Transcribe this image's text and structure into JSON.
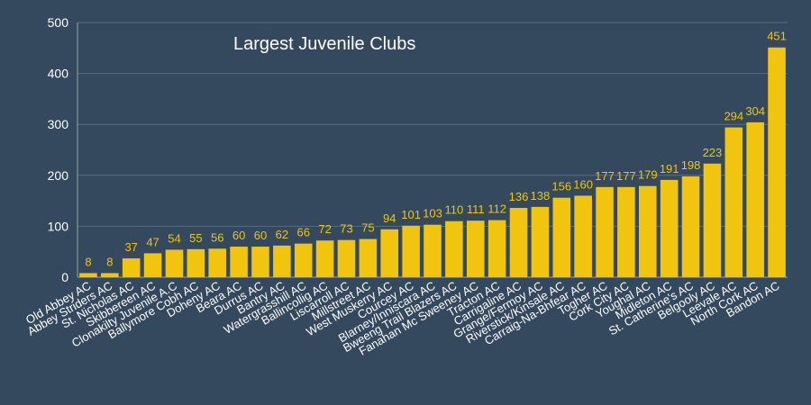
{
  "chart_data": {
    "type": "bar",
    "title": "Largest Juvenile Clubs",
    "xlabel": "",
    "ylabel": "",
    "ylim": [
      0,
      500
    ],
    "yticks": [
      0,
      100,
      200,
      300,
      400,
      500
    ],
    "grid": true,
    "legend": "none",
    "colors": {
      "background": "#34495e",
      "bar": "#f1c40f",
      "label": "#f1c40f",
      "text": "#ffffff",
      "grid": "#5d6d7e"
    },
    "categories": [
      "Old Abbey AC",
      "Abbey Striders AC",
      "St. Nicholas AC",
      "Skibbereen AC",
      "Clonakilty Juvenile A.C",
      "Ballymore Cobh AC",
      "Doheny AC",
      "Beara AC",
      "Durrus AC",
      "Bantry AC",
      "Watergrasshill AC",
      "Ballincollig AC",
      "Liscarroll AC",
      "Millstreet AC",
      "West Muskerry AC",
      "Courcey AC",
      "Blarney/Inniscara AC",
      "Bweeng Trail Blazers AC",
      "Fanahan Mc Sweeney AC",
      "Tracton AC",
      "Carrigaline AC",
      "Grange/Fermoy AC",
      "Riverstick/Kinsale AC",
      "Carraig-Na-Bhfear AC",
      "Togher AC",
      "Cork City AC",
      "Youghal AC",
      "Midleton AC",
      "St. Catherine's AC",
      "Belgooly AC",
      "Leevale AC",
      "North Cork AC",
      "Bandon AC"
    ],
    "values": [
      8,
      8,
      37,
      47,
      54,
      55,
      56,
      60,
      60,
      62,
      66,
      72,
      73,
      75,
      94,
      101,
      103,
      110,
      111,
      112,
      136,
      138,
      156,
      160,
      177,
      177,
      179,
      191,
      198,
      223,
      294,
      304,
      451
    ]
  }
}
